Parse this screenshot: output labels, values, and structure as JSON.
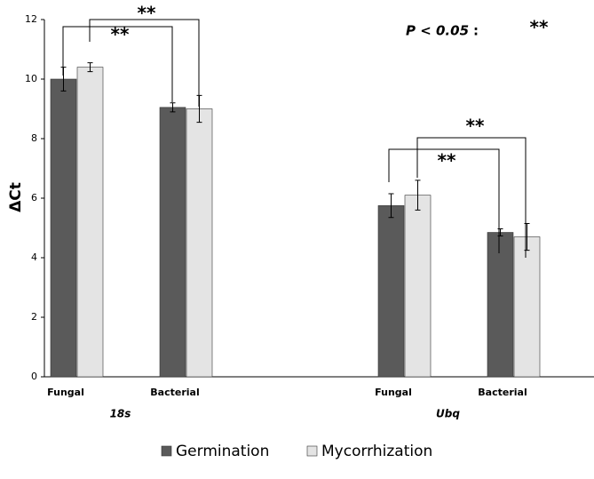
{
  "chart_data": {
    "type": "bar",
    "y_label": "ΔCt",
    "categories": [
      "Fungal",
      "Bacterial",
      "Fungal",
      "Bacterial"
    ],
    "groups": [
      "18s",
      "Ubq"
    ],
    "series": [
      {
        "name": "Germination",
        "color": "#5a5a5a",
        "values": [
          10.0,
          9.05,
          5.75,
          4.85
        ],
        "errors": [
          0.4,
          0.15,
          0.4,
          0.12
        ]
      },
      {
        "name": "Mycorrhization",
        "color": "#e4e4e4",
        "values": [
          10.4,
          9.0,
          6.1,
          4.7
        ],
        "errors": [
          0.15,
          0.45,
          0.5,
          0.45
        ]
      }
    ],
    "ylim": [
      0,
      12
    ],
    "yticks": [
      0,
      2,
      4,
      6,
      8,
      10,
      12
    ],
    "significance": [
      "**",
      "**",
      "**",
      "**"
    ],
    "note": {
      "label": "P < 0.05",
      "sep": ":",
      "mark": "**"
    }
  }
}
